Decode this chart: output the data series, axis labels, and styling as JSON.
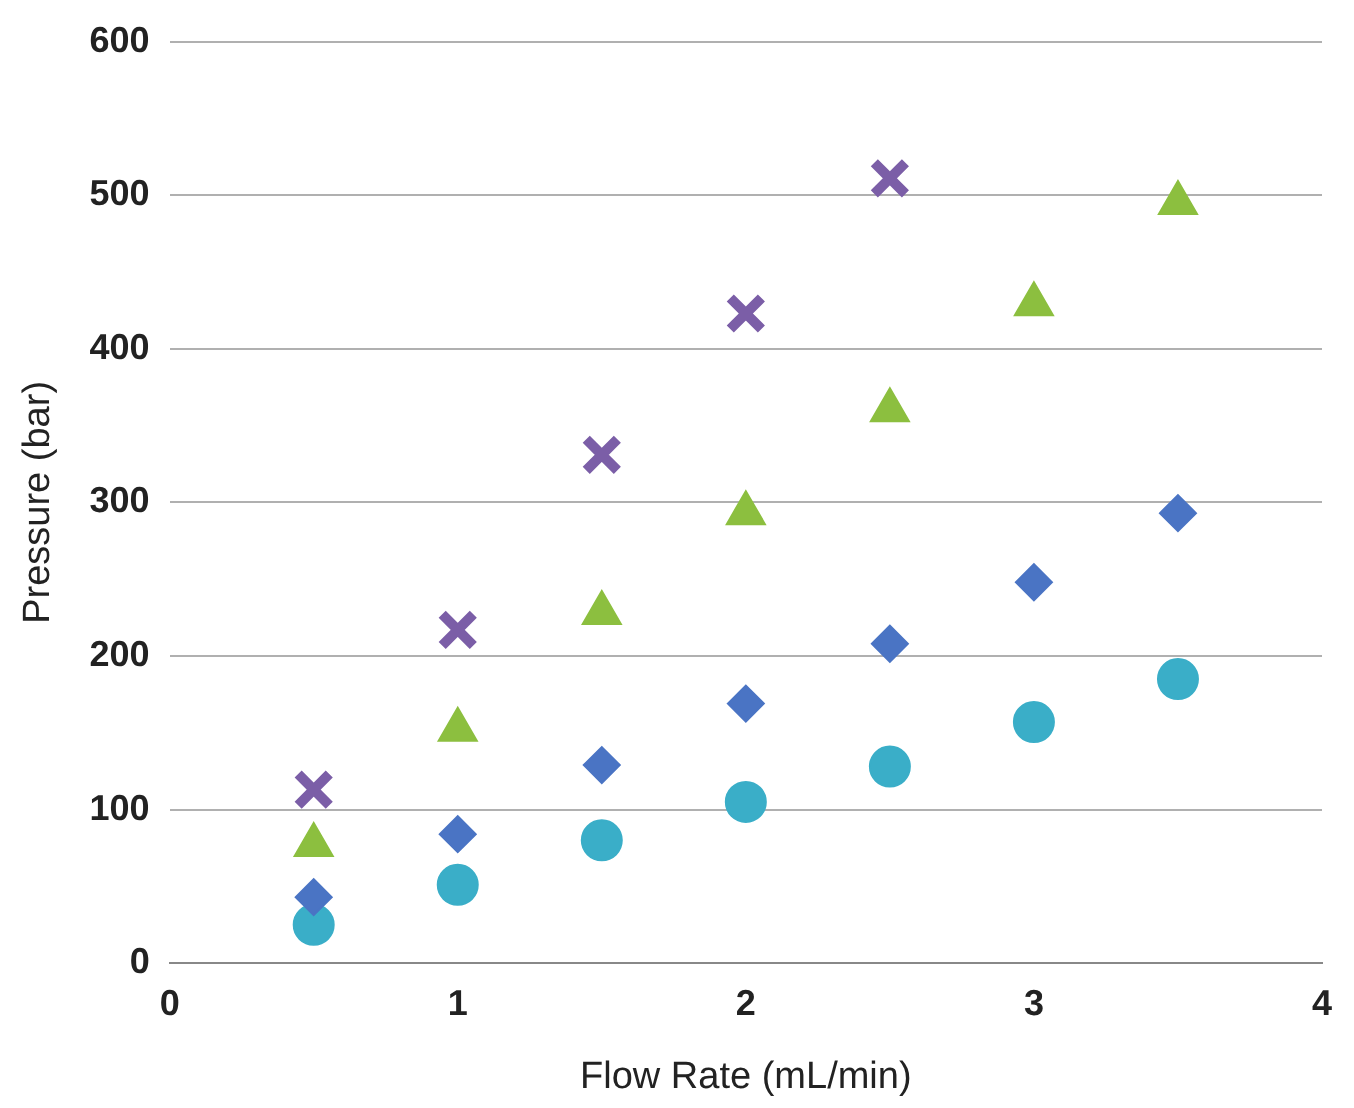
{
  "chart_data": {
    "type": "scatter",
    "xlabel": "Flow Rate (mL/min)",
    "ylabel": "Pressure (bar)",
    "xlim": [
      0,
      4
    ],
    "xticks": [
      0,
      1,
      2,
      3,
      4
    ],
    "ylim": [
      0,
      600
    ],
    "yticks": [
      0,
      100,
      200,
      300,
      400,
      500,
      600
    ],
    "grid": "y",
    "legend": false,
    "series": [
      {
        "color": "#7b5ea7",
        "marker": "cross",
        "x": [
          0.5,
          1,
          1.5,
          2,
          2.5
        ],
        "values": [
          113,
          217,
          331,
          423,
          511
        ]
      },
      {
        "color": "#8cbf3f",
        "marker": "triangle",
        "x": [
          0.5,
          1,
          1.5,
          2,
          2.5,
          3,
          3.5
        ],
        "values": [
          77,
          152,
          228,
          293,
          360,
          429,
          495
        ]
      },
      {
        "color": "#4a74c4",
        "marker": "diamond",
        "x": [
          0.5,
          1,
          1.5,
          2,
          2.5,
          3,
          3.5
        ],
        "values": [
          43,
          84,
          129,
          169,
          208,
          248,
          293
        ]
      },
      {
        "color": "#3aaec8",
        "marker": "circle",
        "x": [
          0.5,
          1,
          1.5,
          2,
          2.5,
          3,
          3.5
        ],
        "values": [
          25,
          51,
          80,
          105,
          128,
          157,
          185
        ]
      }
    ]
  }
}
